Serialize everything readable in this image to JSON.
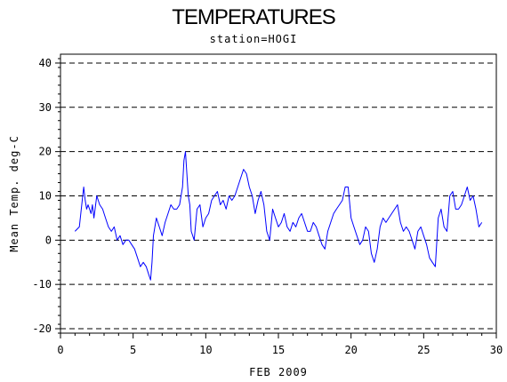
{
  "chart_data": {
    "type": "line",
    "title": "TEMPERATURES",
    "subtitle": "station=HOGI",
    "xlabel": "FEB 2009",
    "ylabel": "Mean Temp. deg-C",
    "xlim": [
      0,
      30
    ],
    "ylim": [
      -21,
      42
    ],
    "x_ticks": [
      0,
      5,
      10,
      15,
      20,
      25,
      30
    ],
    "y_ticks": [
      -20,
      -10,
      0,
      10,
      20,
      30,
      40
    ],
    "grid": "dashed horizontal at y ticks",
    "colors": {
      "series": "#0000ff",
      "axis": "#000000",
      "grid": "#000000"
    },
    "series": [
      {
        "x": [
          1.0,
          1.3,
          1.6,
          1.7,
          1.8,
          1.9,
          2.0,
          2.1,
          2.2,
          2.3,
          2.5,
          2.7,
          2.9,
          3.1,
          3.3,
          3.5,
          3.7,
          3.9,
          4.1,
          4.3,
          4.5,
          4.7,
          4.9,
          5.1,
          5.3,
          5.5,
          5.7,
          5.9,
          6.1,
          6.2,
          6.3,
          6.4,
          6.6,
          6.8,
          7.0,
          7.2,
          7.4,
          7.6,
          7.8,
          8.0,
          8.2,
          8.4,
          8.5,
          8.6,
          8.7,
          8.8,
          8.9,
          9.0,
          9.2,
          9.4,
          9.6,
          9.8,
          10.0,
          10.2,
          10.4,
          10.6,
          10.8,
          11.0,
          11.2,
          11.4,
          11.6,
          11.8,
          12.0,
          12.2,
          12.4,
          12.6,
          12.8,
          13.0,
          13.2,
          13.4,
          13.6,
          13.8,
          14.0,
          14.2,
          14.4,
          14.6,
          14.8,
          15.0,
          15.2,
          15.4,
          15.6,
          15.8,
          16.0,
          16.2,
          16.4,
          16.6,
          16.8,
          17.0,
          17.2,
          17.4,
          17.6,
          17.8,
          18.0,
          18.2,
          18.4,
          18.6,
          18.8,
          19.0,
          19.2,
          19.4,
          19.6,
          19.8,
          20.0,
          20.2,
          20.4,
          20.6,
          20.8,
          21.0,
          21.2,
          21.4,
          21.6,
          21.8,
          22.0,
          22.2,
          22.4,
          22.6,
          22.8,
          23.0,
          23.2,
          23.4,
          23.6,
          23.8,
          24.0,
          24.2,
          24.4,
          24.6,
          24.8,
          25.0,
          25.2,
          25.4,
          25.6,
          25.8,
          26.0,
          26.2,
          26.4,
          26.6,
          26.8,
          27.0,
          27.2,
          27.4,
          27.6,
          27.8,
          28.0,
          28.2,
          28.4,
          28.6,
          28.8,
          29.0
        ],
        "values": [
          2.0,
          3.0,
          12.0,
          9.0,
          7.0,
          8.0,
          7.0,
          6.0,
          8.0,
          5.0,
          10.0,
          8.0,
          7.0,
          5.0,
          3.0,
          2.0,
          3.0,
          0.0,
          1.0,
          -1.0,
          0.0,
          0.0,
          -1.0,
          -2.0,
          -4.0,
          -6.0,
          -5.0,
          -6.0,
          -8.0,
          -9.0,
          -5.0,
          1.0,
          5.0,
          3.0,
          1.0,
          4.0,
          6.0,
          8.0,
          7.0,
          7.0,
          8.0,
          12.0,
          18.0,
          20.0,
          15.0,
          10.0,
          8.0,
          2.0,
          0.0,
          7.0,
          8.0,
          3.0,
          5.0,
          6.0,
          9.0,
          10.0,
          11.0,
          8.0,
          9.0,
          7.0,
          10.0,
          9.0,
          10.0,
          12.0,
          14.0,
          16.0,
          15.0,
          12.0,
          10.0,
          6.0,
          9.0,
          11.0,
          8.0,
          2.0,
          0.0,
          7.0,
          5.0,
          3.0,
          4.0,
          6.0,
          3.0,
          2.0,
          4.0,
          3.0,
          5.0,
          6.0,
          4.0,
          2.0,
          2.0,
          4.0,
          3.0,
          1.0,
          -1.0,
          -2.0,
          2.0,
          4.0,
          6.0,
          7.0,
          8.0,
          9.0,
          12.0,
          12.0,
          5.0,
          3.0,
          1.0,
          -1.0,
          0.0,
          3.0,
          2.0,
          -3.0,
          -5.0,
          -2.0,
          3.0,
          5.0,
          4.0,
          5.0,
          6.0,
          7.0,
          8.0,
          4.0,
          2.0,
          3.0,
          2.0,
          0.0,
          -2.0,
          2.0,
          3.0,
          1.0,
          -1.0,
          -4.0,
          -5.0,
          -6.0,
          5.0,
          7.0,
          3.0,
          2.0,
          10.0,
          11.0,
          7.0,
          7.0,
          8.0,
          10.0,
          12.0,
          9.0,
          10.0,
          7.0,
          3.0,
          4.0
        ]
      }
    ]
  }
}
